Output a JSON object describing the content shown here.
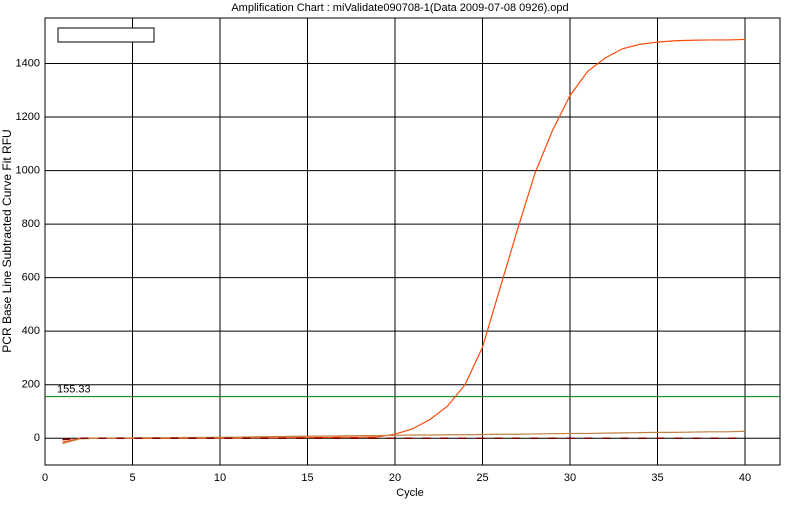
{
  "chart_data": {
    "type": "line",
    "title": "Amplification Chart : miValidate090708-1(Data 2009-07-08 0926).opd",
    "x_label": "Cycle",
    "y_label": "PCR Base Line Subtracted Curve Fit RFU",
    "x": [
      1,
      2,
      3,
      4,
      5,
      6,
      7,
      8,
      9,
      10,
      11,
      12,
      13,
      14,
      15,
      16,
      17,
      18,
      19,
      20,
      21,
      22,
      23,
      24,
      25,
      26,
      27,
      28,
      29,
      30,
      31,
      32,
      33,
      34,
      35,
      36,
      37,
      38,
      39,
      40
    ],
    "series": [
      {
        "color": "#ff4a0a",
        "values": [
          -15,
          0,
          0,
          0,
          0,
          0,
          0,
          1,
          1,
          1,
          1,
          2,
          2,
          2,
          3,
          3,
          4,
          4,
          5,
          15,
          35,
          70,
          120,
          200,
          340,
          560,
          780,
          990,
          1150,
          1280,
          1370,
          1420,
          1455,
          1472,
          1480,
          1485,
          1487,
          1488,
          1488,
          1490
        ]
      },
      {
        "color": "#c08040",
        "values": [
          -20,
          -2,
          0,
          1,
          1,
          2,
          2,
          3,
          3,
          4,
          4,
          5,
          6,
          7,
          8,
          8,
          9,
          10,
          10,
          11,
          12,
          12,
          13,
          13,
          14,
          15,
          15,
          16,
          17,
          18,
          18,
          19,
          20,
          21,
          22,
          22,
          23,
          24,
          24,
          26
        ]
      },
      {
        "color": "#800000",
        "dashed": true,
        "values": [
          -5,
          0,
          0,
          0,
          0,
          0,
          0,
          0,
          0,
          0,
          0,
          0,
          0,
          0,
          0,
          0,
          0,
          0,
          0,
          0,
          0,
          0,
          0,
          0,
          0,
          0,
          0,
          0,
          0,
          0,
          0,
          0,
          0,
          0,
          0,
          0,
          0,
          0,
          0,
          0
        ]
      }
    ],
    "threshold": 155.33,
    "threshold_color": "#008000",
    "xlim": [
      0,
      42
    ],
    "ylim": [
      -100,
      1570
    ],
    "xticks": [
      0,
      5,
      10,
      15,
      20,
      25,
      30,
      35,
      40
    ],
    "yticks": [
      0,
      200,
      400,
      600,
      800,
      1000,
      1200,
      1400
    ],
    "grid": true
  }
}
